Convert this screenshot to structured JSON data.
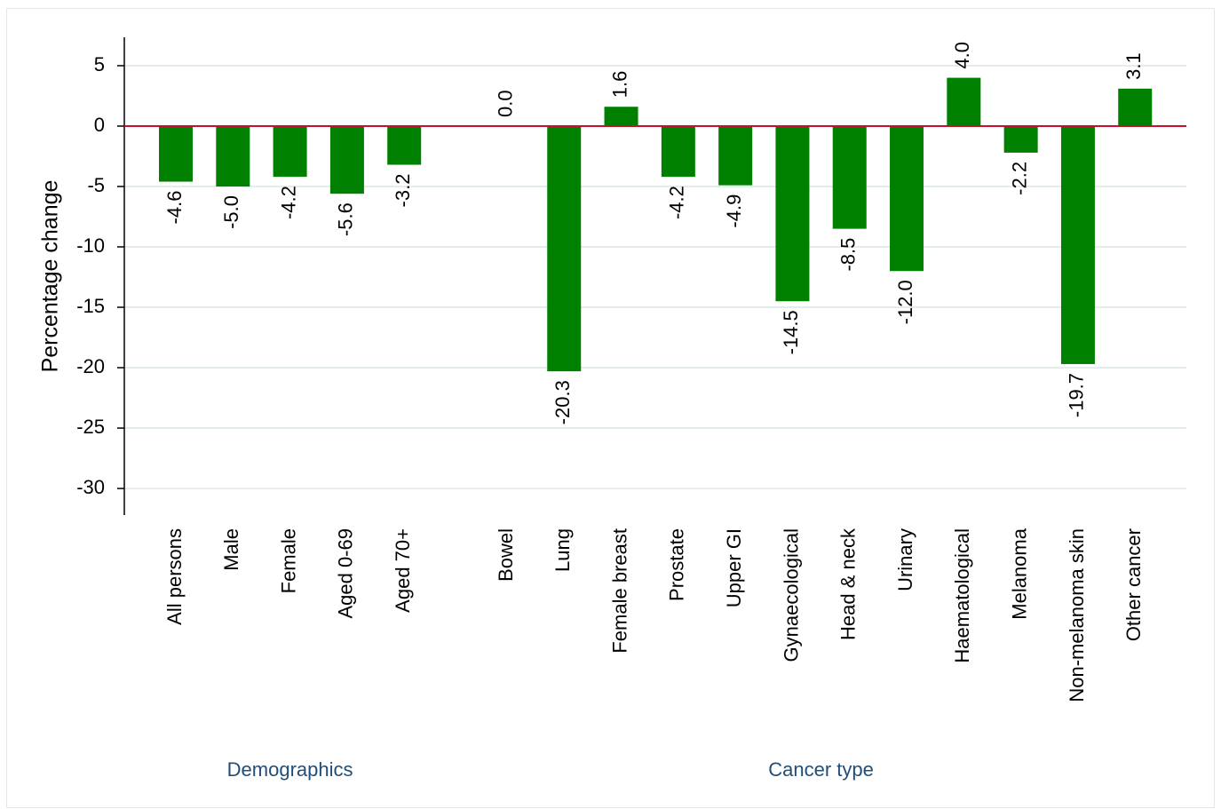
{
  "chart_data": {
    "type": "bar",
    "y_label": "Percentage change",
    "color": "#008000",
    "zero_line_color": "#c8102e",
    "ylim": [
      -32.2,
      7.35
    ],
    "yticks": [
      5,
      0,
      -5,
      -10,
      -15,
      -20,
      -25,
      -30
    ],
    "grid": true,
    "groups": [
      {
        "label": "Demographics",
        "categories": [
          "All persons",
          "Male",
          "Female",
          "Aged 0-69",
          "Aged 70+"
        ],
        "values": [
          -4.6,
          -5.0,
          -4.2,
          -5.6,
          -3.2
        ],
        "value_labels": [
          "-4.6",
          "-5.0",
          "-4.2",
          "-5.6",
          "-3.2"
        ]
      },
      {
        "label": "Cancer type",
        "categories": [
          "Bowel",
          "Lung",
          "Female breast",
          "Prostate",
          "Upper GI",
          "Gynaecological",
          "Head & neck",
          "Urinary",
          "Haematological",
          "Melanoma",
          "Non-melanoma skin",
          "Other cancer"
        ],
        "values": [
          0.0,
          -20.3,
          1.6,
          -4.2,
          -4.9,
          -14.5,
          -8.5,
          -12.0,
          4.0,
          -2.2,
          -19.7,
          3.1
        ],
        "value_labels": [
          "0.0",
          "-20.3",
          "1.6",
          "-4.2",
          "-4.9",
          "-14.5",
          "-8.5",
          "-12.0",
          "4.0",
          "-2.2",
          "-19.7",
          "3.1"
        ]
      }
    ]
  }
}
